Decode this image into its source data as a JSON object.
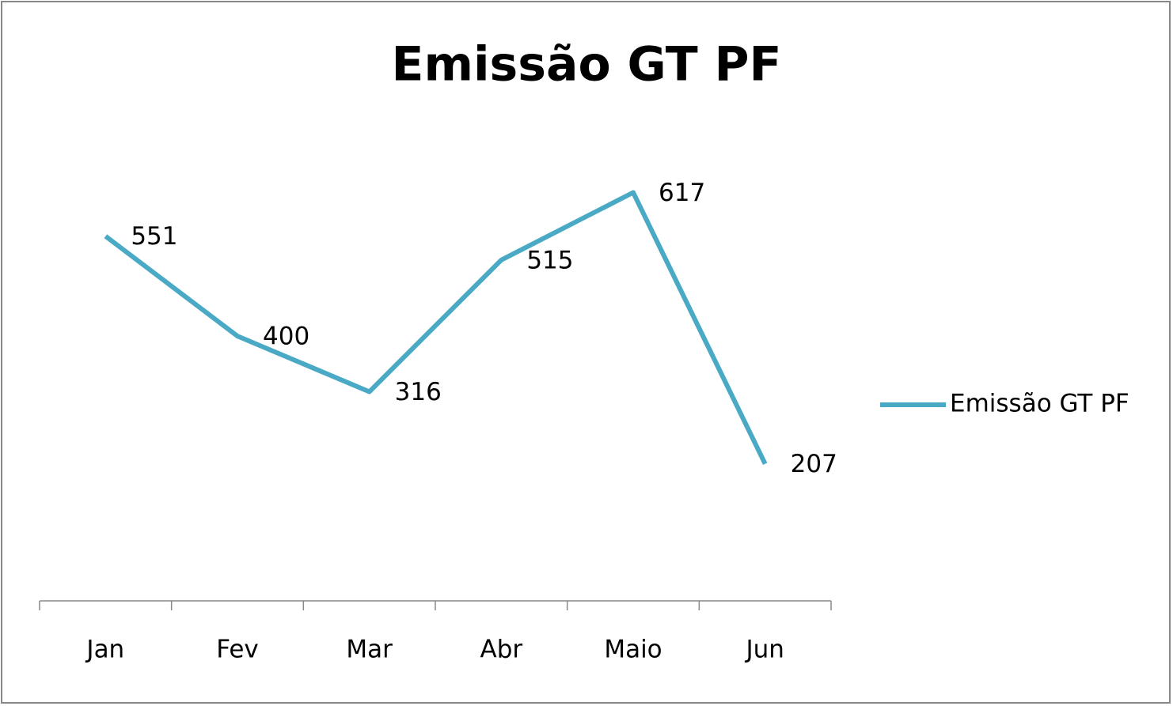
{
  "chart_data": {
    "type": "line",
    "title": "Emissão GT PF",
    "categories": [
      "Jan",
      "Fev",
      "Mar",
      "Abr",
      "Maio",
      "Jun"
    ],
    "series": [
      {
        "name": "Emissão GT PF",
        "color": "#4aa9c4",
        "values": [
          551,
          400,
          316,
          515,
          617,
          207
        ]
      }
    ],
    "ylim": [
      0,
      700
    ],
    "legend": "right"
  }
}
